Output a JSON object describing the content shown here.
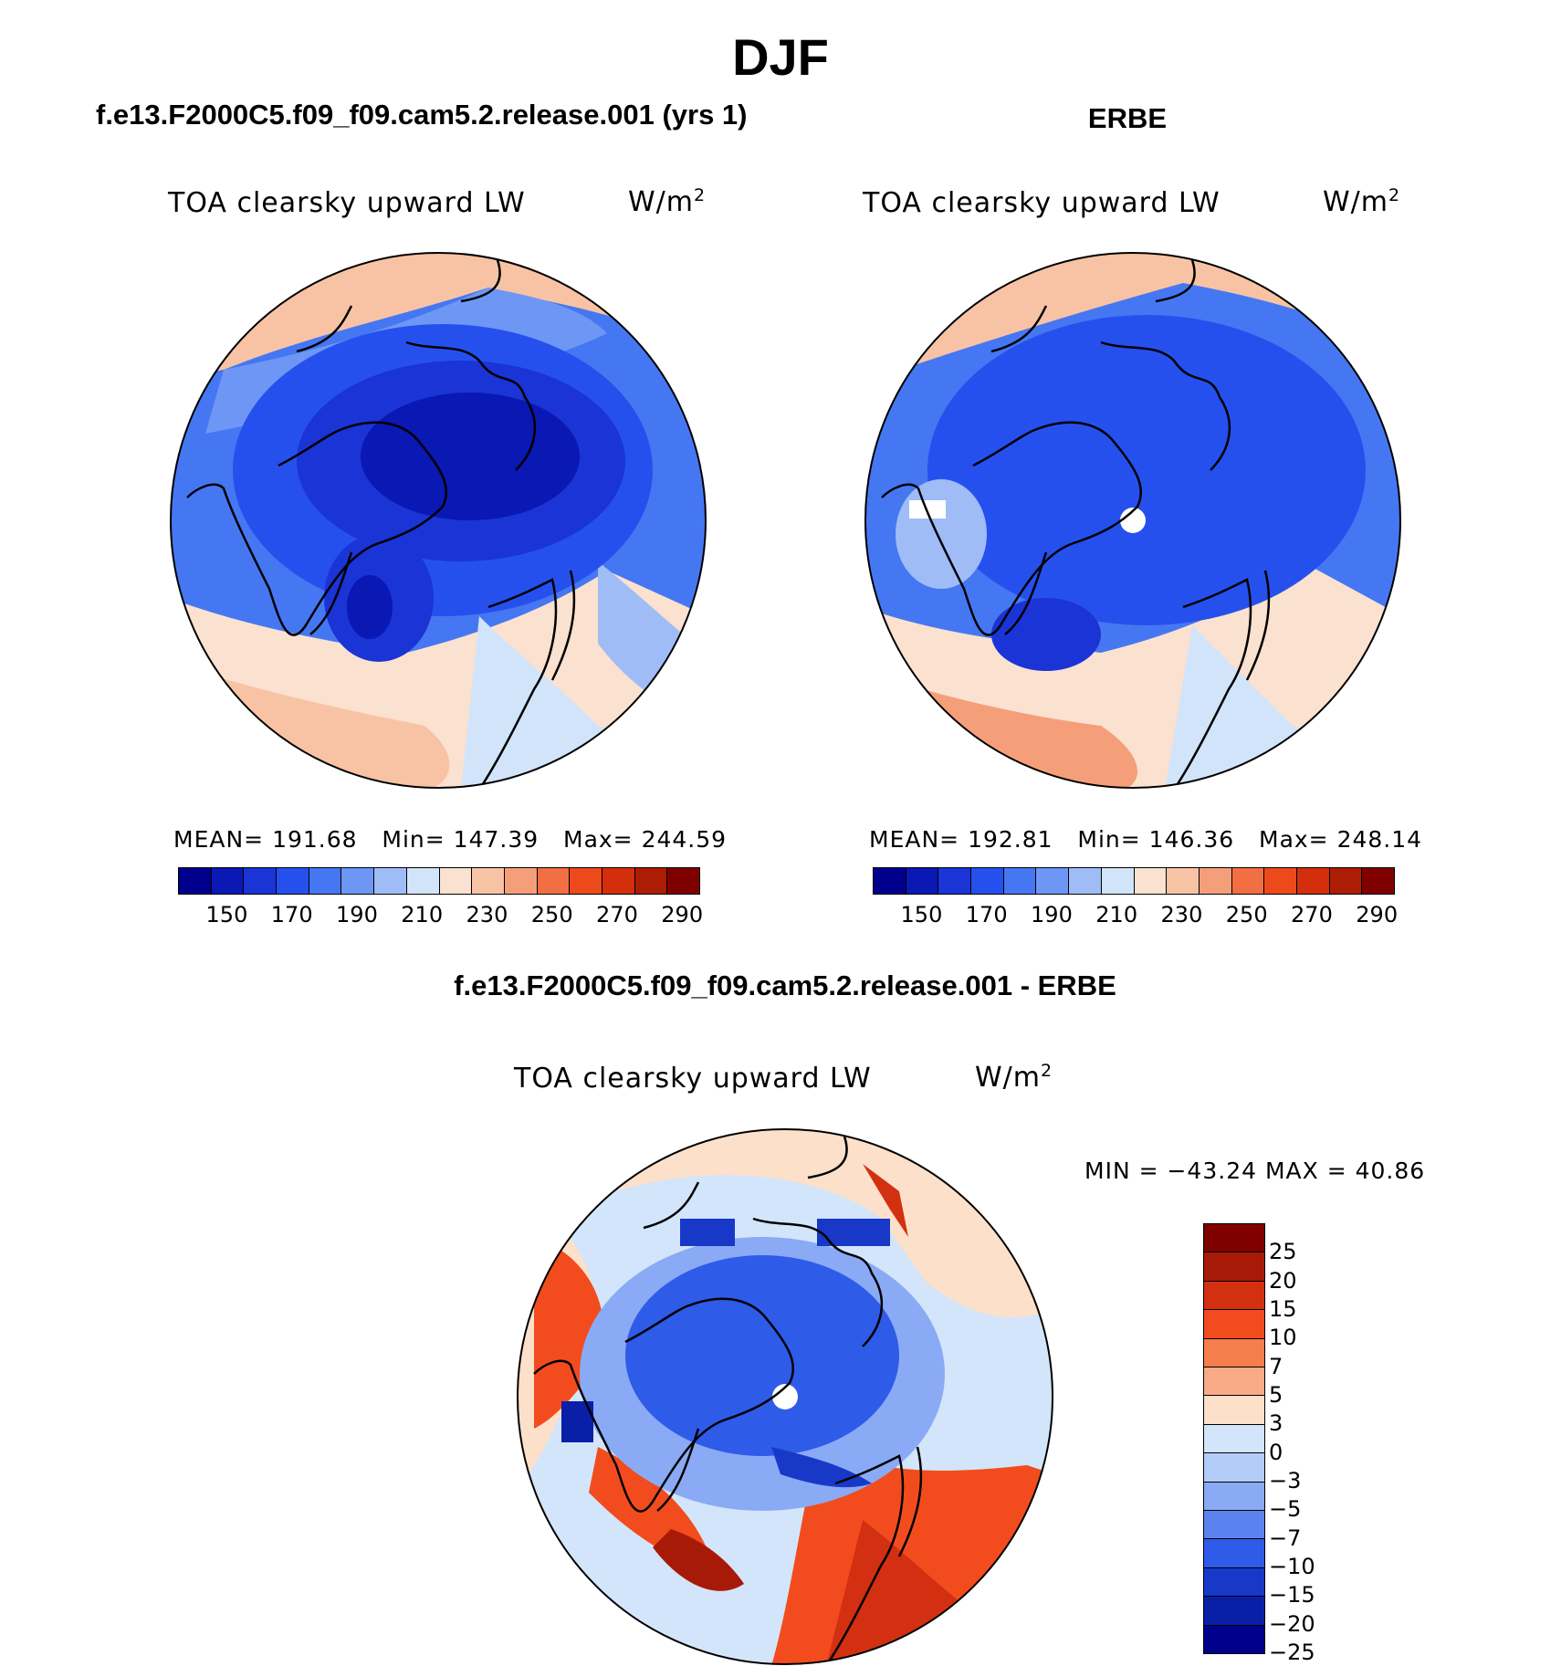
{
  "title": "DJF",
  "panels": {
    "model": {
      "header": "f.e13.F2000C5.f09_f09.cam5.2.release.001 (yrs 1)",
      "variable": "TOA clearsky upward LW",
      "units": "W/m",
      "units_exp": "2",
      "mean_label": "MEAN=",
      "mean": "191.68",
      "min_label": "Min=",
      "min": "147.39",
      "max_label": "Max=",
      "max": "244.59"
    },
    "obs": {
      "header": "ERBE",
      "variable": "TOA clearsky upward LW",
      "units": "W/m",
      "units_exp": "2",
      "mean_label": "MEAN=",
      "mean": "192.81",
      "min_label": "Min=",
      "min": "146.36",
      "max_label": "Max=",
      "max": "248.14"
    },
    "diff": {
      "header": "f.e13.F2000C5.f09_f09.cam5.2.release.001 - ERBE",
      "variable": "TOA clearsky upward LW",
      "units": "W/m",
      "units_exp": "2",
      "minmax_label": "MIN = −43.24 MAX =   40.86"
    }
  },
  "chart_data": [
    {
      "type": "heatmap",
      "name": "model",
      "projection": "north-polar-stereographic",
      "colorbar_ticks": [
        "150",
        "170",
        "190",
        "210",
        "230",
        "250",
        "270",
        "290"
      ],
      "colorbar_colors": [
        "#00008c",
        "#0a18b4",
        "#1a34d6",
        "#2650ee",
        "#4677f2",
        "#6e97f5",
        "#9fbcf7",
        "#d2e4fa",
        "#fbe1cf",
        "#f8c3a5",
        "#f59f7a",
        "#f26f43",
        "#ec4a1b",
        "#d32f0d",
        "#ad1d06",
        "#800000"
      ],
      "mean": 191.68,
      "min": 147.39,
      "max": 244.59
    },
    {
      "type": "heatmap",
      "name": "obs",
      "projection": "north-polar-stereographic",
      "colorbar_ticks": [
        "150",
        "170",
        "190",
        "210",
        "230",
        "250",
        "270",
        "290"
      ],
      "colorbar_colors": [
        "#00008c",
        "#0a18b4",
        "#1a34d6",
        "#2650ee",
        "#4677f2",
        "#6e97f5",
        "#9fbcf7",
        "#d2e4fa",
        "#fbe1cf",
        "#f8c3a5",
        "#f59f7a",
        "#f26f43",
        "#ec4a1b",
        "#d32f0d",
        "#ad1d06",
        "#800000"
      ],
      "mean": 192.81,
      "min": 146.36,
      "max": 248.14
    },
    {
      "type": "heatmap",
      "name": "difference",
      "projection": "north-polar-stereographic",
      "colorbar_ticks": [
        "25",
        "20",
        "15",
        "10",
        "7",
        "5",
        "3",
        "0",
        "−3",
        "−5",
        "−7",
        "−10",
        "−15",
        "−20",
        "−25"
      ],
      "colorbar_colors": [
        "#800000",
        "#a81a08",
        "#d23011",
        "#f24c1e",
        "#f67e4c",
        "#f8ab86",
        "#fce0ca",
        "#d3e5fa",
        "#b2cdf8",
        "#8aaaf5",
        "#5a83f0",
        "#2e5be8",
        "#1838c8",
        "#0a1fa8",
        "#00008c"
      ],
      "min": -43.24,
      "max": 40.86
    }
  ]
}
